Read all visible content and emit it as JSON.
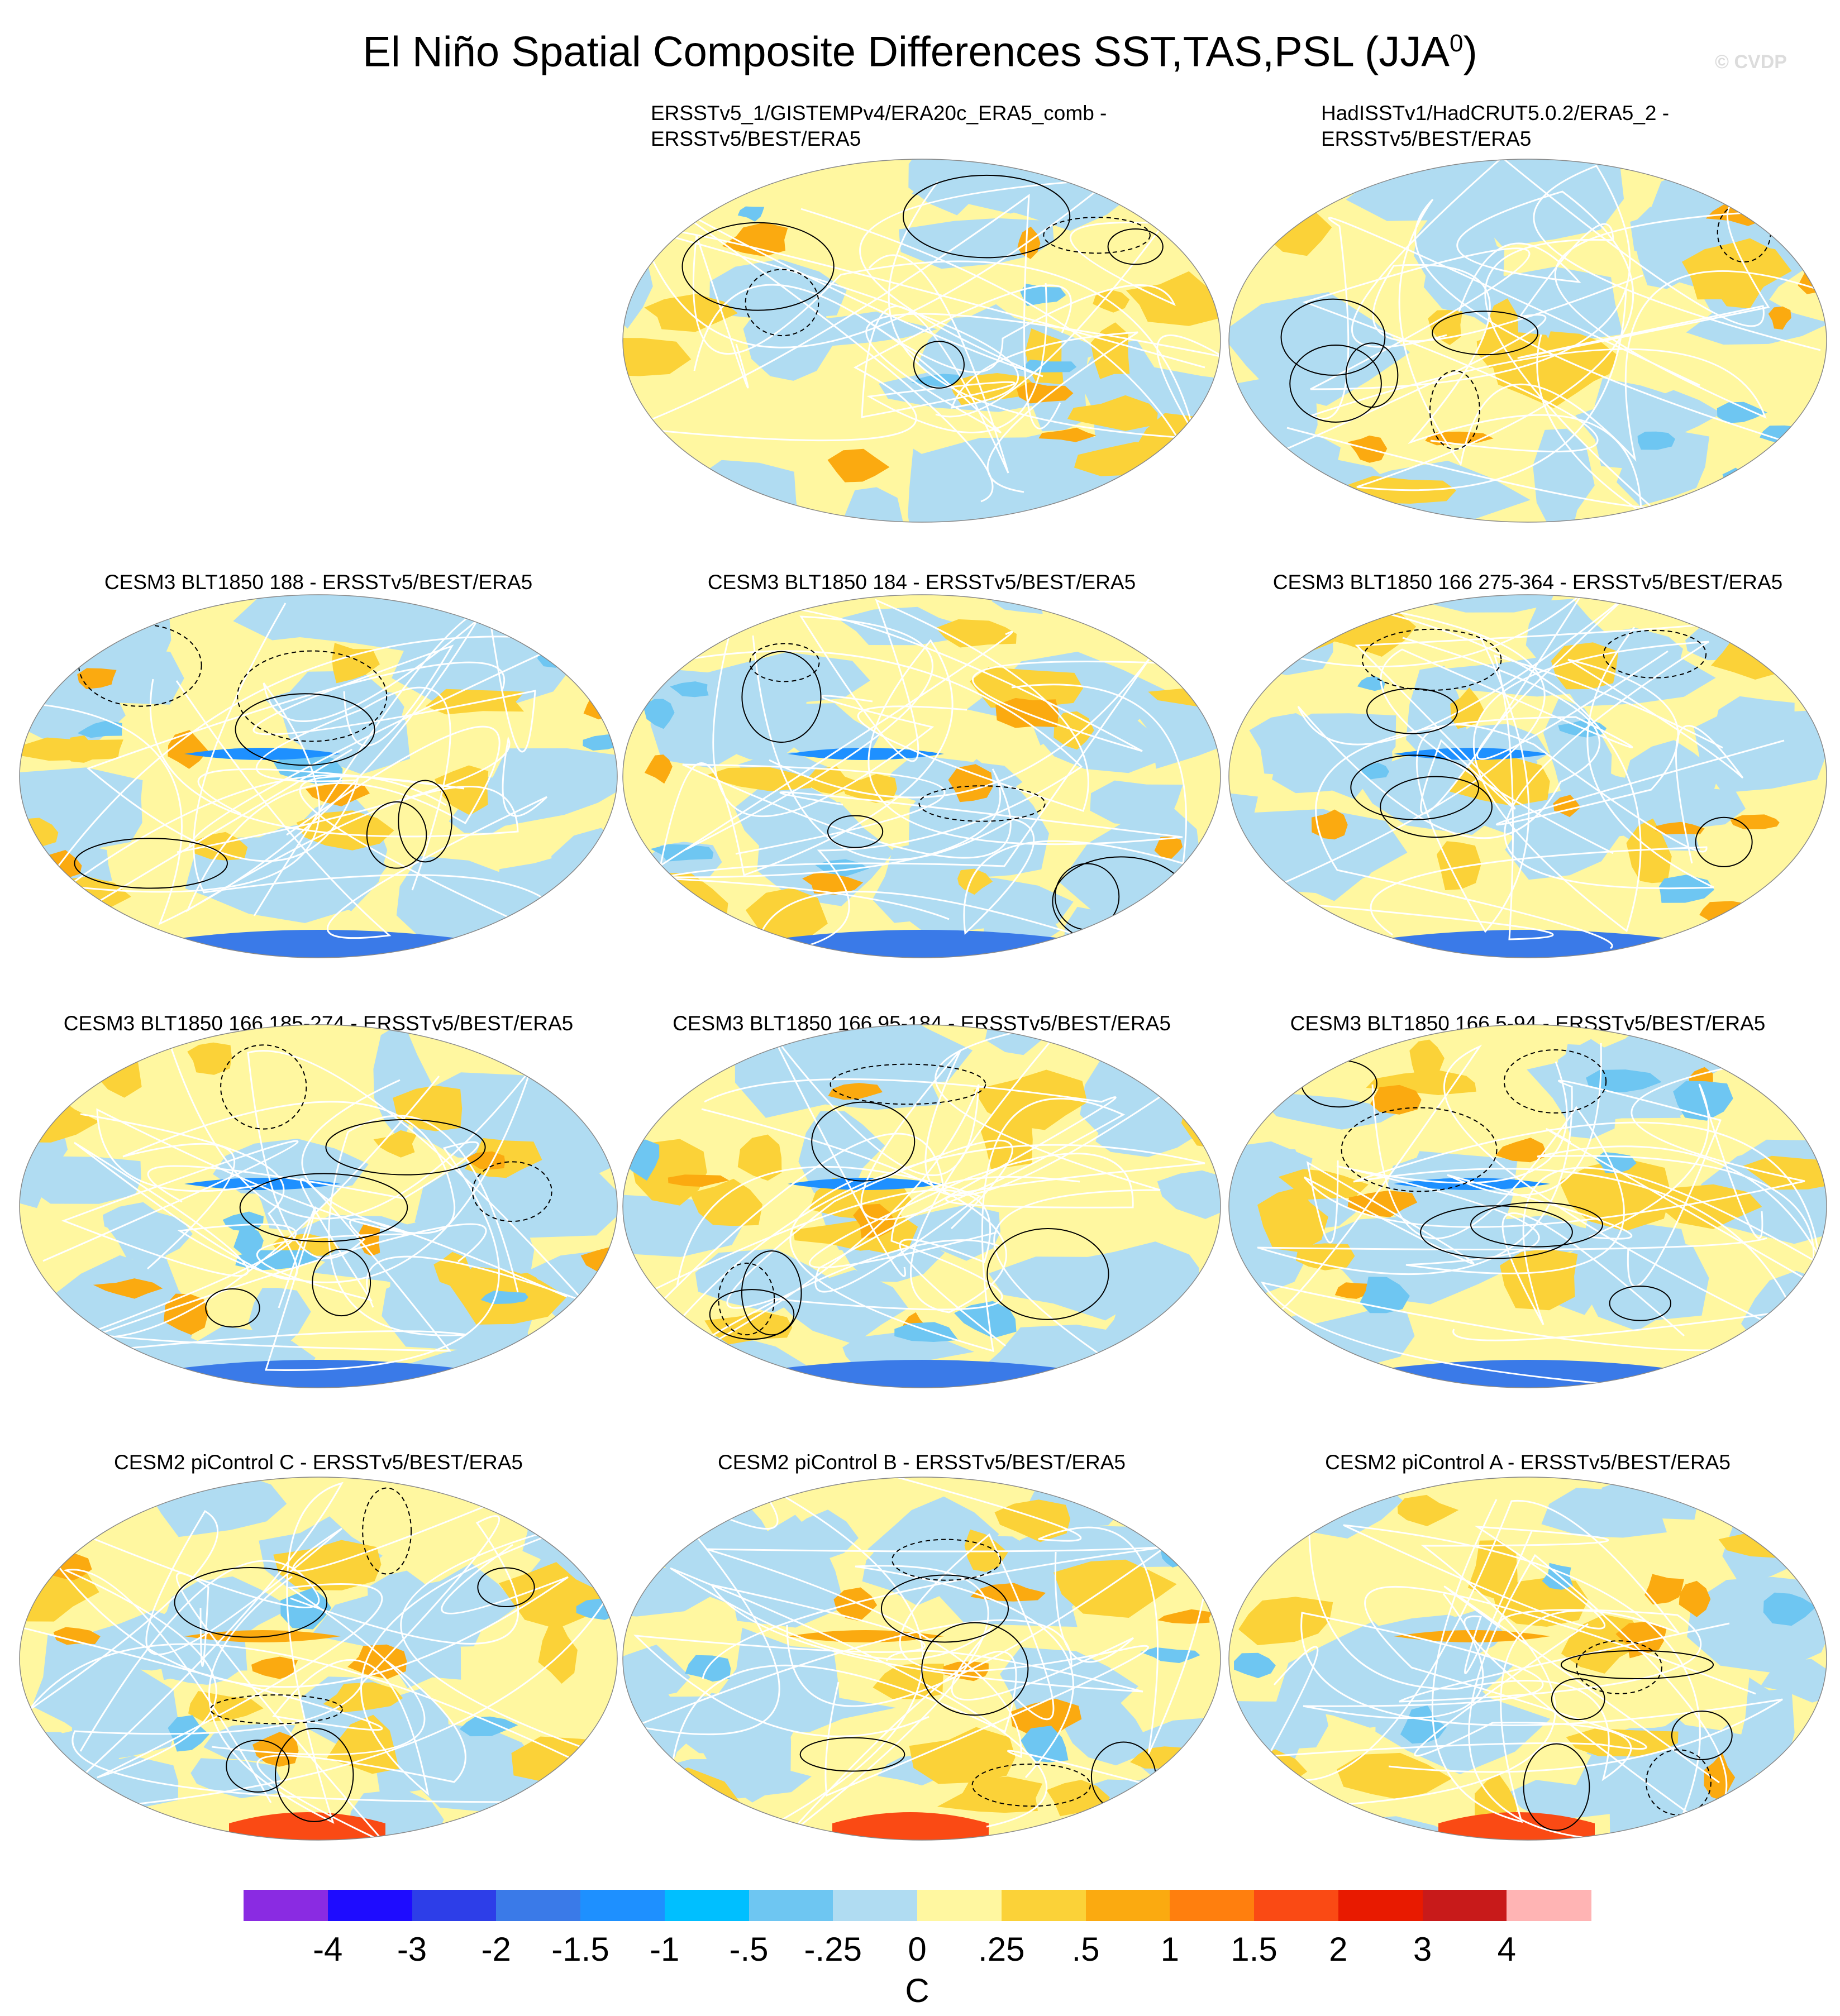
{
  "title": {
    "main": "El Niño Spatial Composite Differences SST,TAS,PSL (JJA",
    "superscript": "0",
    "close": ")"
  },
  "copyright": "© CVDP",
  "panels": [
    {
      "id": "p1",
      "title_lines": [
        "ERSSTv5_1/GISTEMPv4/ERA20c_ERA5_comb -",
        "ERSSTv5/BEST/ERA5"
      ]
    },
    {
      "id": "p2",
      "title_lines": [
        "HadISSTv1/HadCRUT5.0.2/ERA5_2 -",
        "ERSSTv5/BEST/ERA5"
      ]
    },
    {
      "id": "p3",
      "title_lines": [
        "CESM3 BLT1850 188 - ERSSTv5/BEST/ERA5"
      ]
    },
    {
      "id": "p4",
      "title_lines": [
        "CESM3 BLT1850 184 - ERSSTv5/BEST/ERA5"
      ]
    },
    {
      "id": "p5",
      "title_lines": [
        "CESM3 BLT1850 166 275-364 - ERSSTv5/BEST/ERA5"
      ]
    },
    {
      "id": "p6",
      "title_lines": [
        "CESM3 BLT1850 166 185-274 - ERSSTv5/BEST/ERA5"
      ]
    },
    {
      "id": "p7",
      "title_lines": [
        "CESM3 BLT1850 166 95-184 - ERSSTv5/BEST/ERA5"
      ]
    },
    {
      "id": "p8",
      "title_lines": [
        "CESM3 BLT1850 166 5-94 - ERSSTv5/BEST/ERA5"
      ]
    },
    {
      "id": "p9",
      "title_lines": [
        "CESM2 piControl C - ERSSTv5/BEST/ERA5"
      ]
    },
    {
      "id": "p10",
      "title_lines": [
        "CESM2 piControl B - ERSSTv5/BEST/ERA5"
      ]
    },
    {
      "id": "p11",
      "title_lines": [
        "CESM2 piControl A - ERSSTv5/BEST/ERA5"
      ]
    }
  ],
  "colorbar": {
    "colors": [
      "#8a2be2",
      "#1e0cff",
      "#2d3ee8",
      "#3a7ae8",
      "#1e90ff",
      "#00bfff",
      "#6ec6f2",
      "#b0dcf2",
      "#fff7a0",
      "#fbd238",
      "#fbaa10",
      "#ff7f0e",
      "#fa4a14",
      "#e81a00",
      "#c81a1a",
      "#ffb4b4"
    ],
    "labels": [
      "-4",
      "-3",
      "-2",
      "-1.5",
      "-1",
      "-.5",
      "-.25",
      "0",
      ".25",
      ".5",
      "1",
      "1.5",
      "2",
      "3",
      "4"
    ],
    "units": "C"
  },
  "palette": {
    "neutral_warm": "#fff7a0",
    "neutral_cool": "#b0dcf2",
    "warm": "#fbd238",
    "warmer": "#fbaa10",
    "cool": "#6ec6f2",
    "cooler": "#1e90ff",
    "hot": "#fa4a14",
    "cold": "#3a7ae8"
  }
}
